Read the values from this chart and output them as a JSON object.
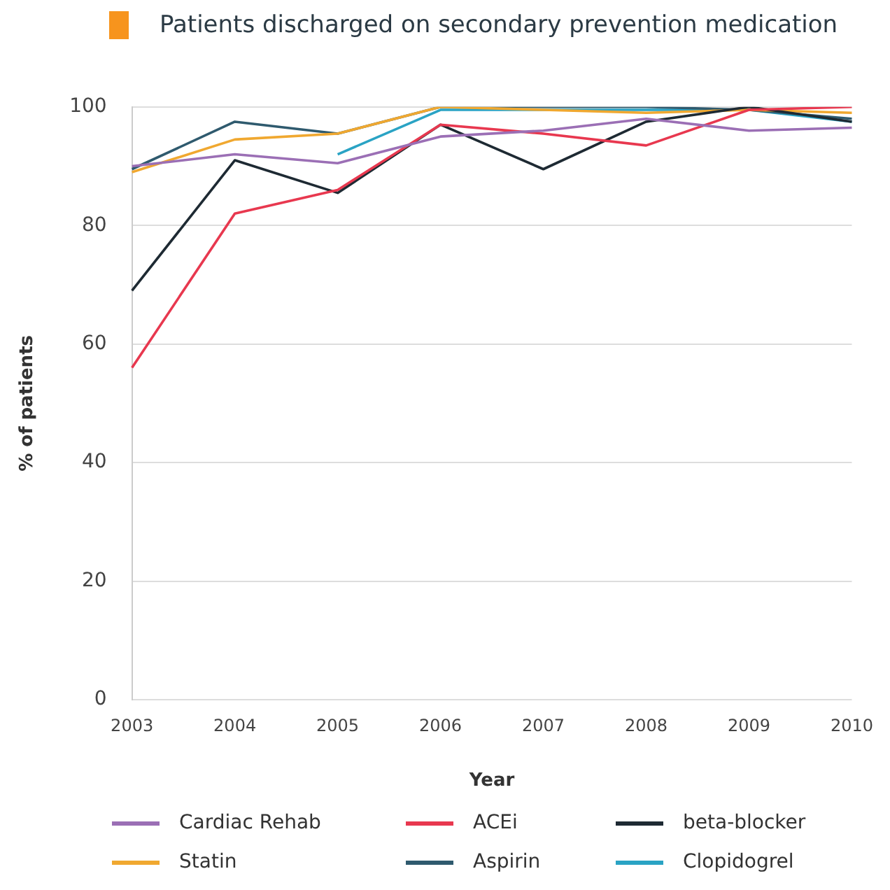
{
  "chart_data": {
    "type": "line",
    "title": "Patients discharged on secondary prevention medication",
    "xlabel": "Year",
    "ylabel": "% of patients",
    "categories": [
      "2003",
      "2004",
      "2005",
      "2006",
      "2007",
      "2008",
      "2009",
      "2010"
    ],
    "series": [
      {
        "name": "Cardiac Rehab",
        "color": "#9b6fb5",
        "values": [
          90,
          92,
          90.5,
          95,
          96,
          98,
          96,
          96.5
        ]
      },
      {
        "name": "ACEi",
        "color": "#e8384f",
        "values": [
          56,
          82,
          86,
          97,
          95.5,
          93.5,
          99.5,
          100
        ]
      },
      {
        "name": "beta-blocker",
        "color": "#1e2a33",
        "values": [
          69,
          91,
          85.5,
          97,
          89.5,
          97.5,
          100,
          97.5
        ]
      },
      {
        "name": "Statin",
        "color": "#f0a830",
        "values": [
          89,
          94.5,
          95.5,
          100,
          99.5,
          99,
          99.5,
          99
        ]
      },
      {
        "name": "Aspirin",
        "color": "#2f5a6e",
        "values": [
          89.5,
          97.5,
          95.5,
          100,
          100,
          100,
          99.5,
          98
        ]
      },
      {
        "name": "Clopidogrel",
        "color": "#2aa3c4",
        "values": [
          null,
          null,
          92,
          99.5,
          99.5,
          99.5,
          99.5,
          97.5
        ]
      }
    ],
    "ylim": [
      0,
      100
    ],
    "yticks": [
      0,
      20,
      40,
      60,
      80,
      100
    ],
    "grid": "y",
    "legend": "bottom",
    "marker": "none",
    "line_style": "solid"
  }
}
